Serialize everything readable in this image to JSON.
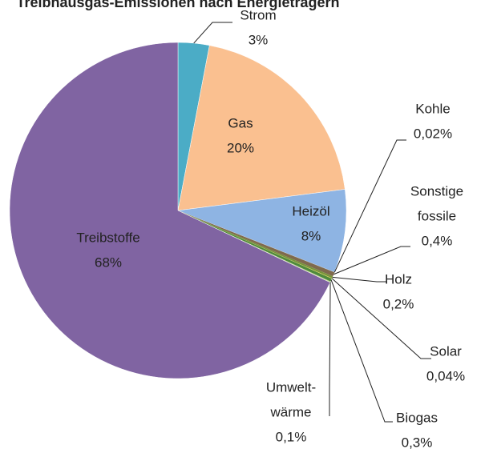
{
  "chart_data": {
    "type": "pie",
    "title": "Treibhausgas-Emissionen nach Energieträgern",
    "categories": [
      [
        "Strom"
      ],
      [
        "Gas"
      ],
      [
        "Heizöl"
      ],
      [
        "Kohle"
      ],
      [
        "Sonstige",
        "fossile"
      ],
      [
        "Holz"
      ],
      [
        "Solar"
      ],
      [
        "Biogas"
      ],
      [
        "Umwelt-",
        "wärme"
      ],
      [
        "Treibstoffe"
      ]
    ],
    "values": [
      3,
      20,
      8,
      0.02,
      0.4,
      0.2,
      0.04,
      0.3,
      0.1,
      68
    ],
    "value_labels": [
      "3%",
      "20%",
      "8%",
      "0,02%",
      "0,4%",
      "0,2%",
      "0,04%",
      "0,3%",
      "0,1%",
      "68%"
    ],
    "colors": [
      "#4bacc6",
      "#fac090",
      "#8eb4e3",
      "#595959",
      "#7f6a4d",
      "#77933c",
      "#f2dc4a",
      "#4f8a3c",
      "#c3d69b",
      "#8064a2"
    ]
  }
}
